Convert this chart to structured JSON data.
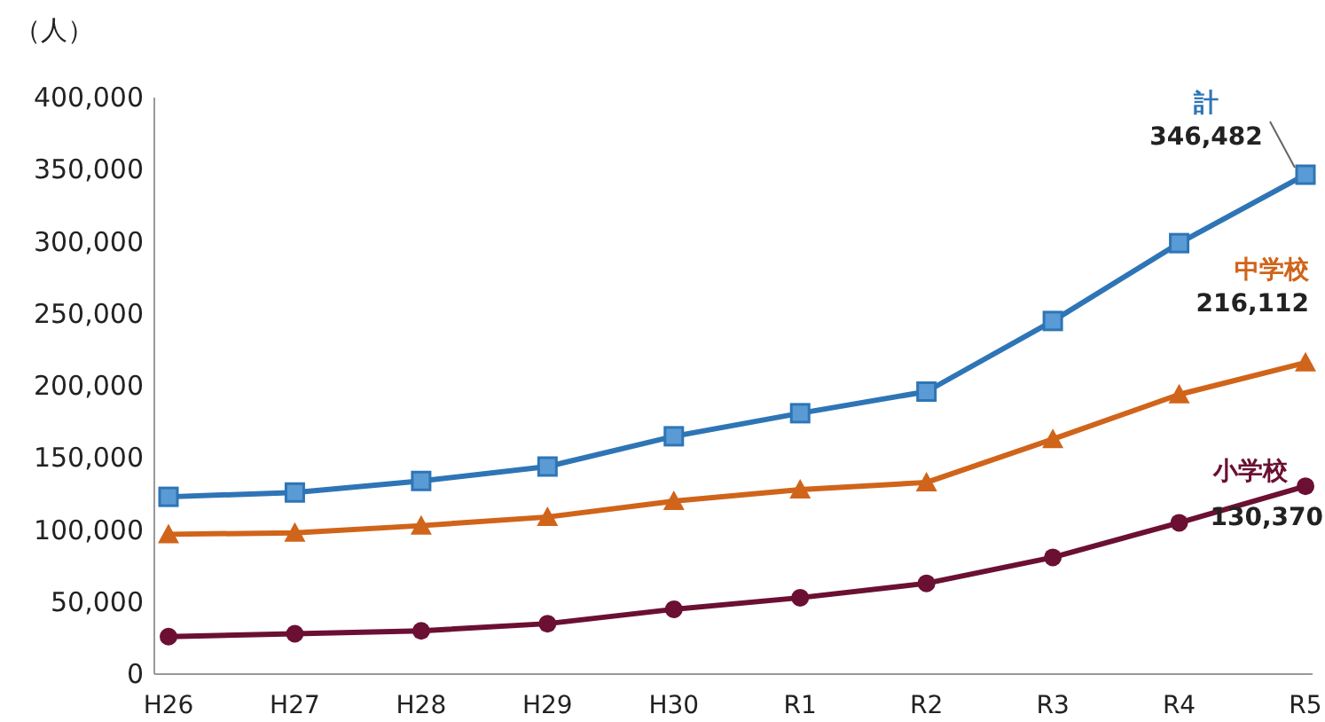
{
  "chart_data": {
    "type": "line",
    "ylabel": "（人）",
    "categories": [
      "H26",
      "H27",
      "H28",
      "H29",
      "H30",
      "R1",
      "R2",
      "R3",
      "R4",
      "R5"
    ],
    "series": [
      {
        "name": "計",
        "color": "#2e75b6",
        "marker": "square",
        "values": [
          123000,
          126000,
          134000,
          144000,
          165000,
          181000,
          196000,
          245000,
          299000,
          346482
        ],
        "value_labels": [
          null,
          null,
          null,
          null,
          null,
          null,
          null,
          null,
          null,
          "346,482"
        ]
      },
      {
        "name": "中学校",
        "color": "#d0641a",
        "marker": "triangle",
        "values": [
          97000,
          98000,
          103000,
          109000,
          120000,
          128000,
          133000,
          163000,
          194000,
          216112
        ],
        "value_labels": [
          null,
          null,
          null,
          null,
          null,
          null,
          null,
          null,
          null,
          "216,112"
        ]
      },
      {
        "name": "小学校",
        "color": "#6b1032",
        "marker": "circle",
        "values": [
          26000,
          28000,
          30000,
          35000,
          45000,
          53000,
          63000,
          81000,
          105000,
          130370
        ],
        "value_labels": [
          null,
          null,
          null,
          null,
          null,
          null,
          null,
          null,
          null,
          "130,370"
        ]
      }
    ],
    "ylim": [
      0,
      400000
    ],
    "yticks": [
      0,
      {
        "value": 50000,
        "label": "50,000"
      },
      {
        "value": 100000,
        "label": "100,000"
      },
      {
        "value": 150000,
        "label": "150,000"
      },
      {
        "value": 200000,
        "label": "200,000"
      },
      {
        "value": 250000,
        "label": "250,000"
      },
      {
        "value": 300000,
        "label": "300,000"
      },
      {
        "value": 350000,
        "label": "350,000"
      },
      {
        "value": 400000,
        "label": "400,000"
      }
    ],
    "grid": false
  }
}
